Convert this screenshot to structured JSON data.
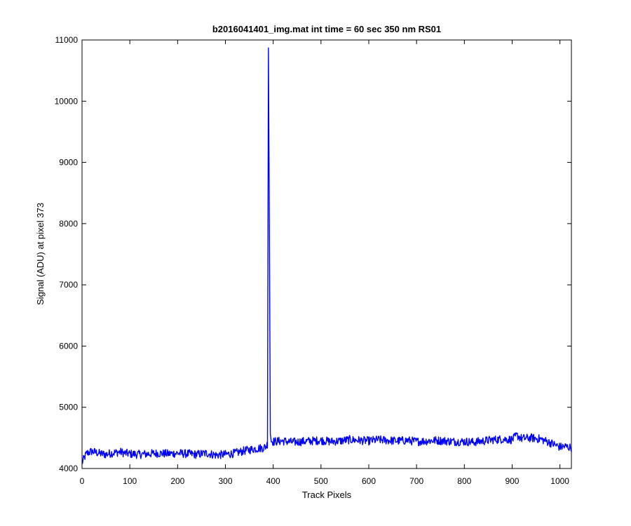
{
  "chart_data": {
    "type": "line",
    "title": "b2016041401_img.mat int time = 60 sec  350 nm RS01",
    "xlabel": "Track Pixels",
    "ylabel": "Signal (ADU) at pixel 373",
    "xlim": [
      0,
      1024
    ],
    "ylim": [
      4000,
      11000
    ],
    "xticks": [
      0,
      100,
      200,
      300,
      400,
      500,
      600,
      700,
      800,
      900,
      1000
    ],
    "yticks": [
      4000,
      5000,
      6000,
      7000,
      8000,
      9000,
      10000,
      11000
    ],
    "grid": false,
    "line_color": "#0000ff",
    "series": [
      {
        "x": [
          0,
          5,
          10,
          20,
          30,
          40,
          50,
          60,
          70,
          80,
          90,
          100,
          120,
          140,
          160,
          180,
          200,
          220,
          240,
          260,
          280,
          300,
          320,
          340,
          360,
          380,
          385,
          388,
          390,
          392,
          394,
          396,
          400,
          420,
          440,
          460,
          480,
          500,
          520,
          540,
          560,
          580,
          600,
          620,
          640,
          660,
          680,
          700,
          720,
          740,
          760,
          780,
          800,
          820,
          840,
          860,
          880,
          900,
          910,
          920,
          940,
          960,
          980,
          1000,
          1010,
          1024
        ],
        "y": [
          4090,
          4180,
          4250,
          4280,
          4260,
          4240,
          4230,
          4250,
          4260,
          4270,
          4250,
          4240,
          4230,
          4240,
          4250,
          4240,
          4250,
          4240,
          4230,
          4250,
          4220,
          4230,
          4250,
          4290,
          4320,
          4340,
          4360,
          4400,
          10870,
          8000,
          4600,
          4450,
          4440,
          4450,
          4430,
          4440,
          4450,
          4460,
          4440,
          4450,
          4470,
          4460,
          4450,
          4470,
          4460,
          4450,
          4460,
          4440,
          4450,
          4460,
          4450,
          4440,
          4440,
          4430,
          4450,
          4470,
          4480,
          4470,
          4540,
          4490,
          4500,
          4480,
          4420,
          4350,
          4360,
          4340
        ]
      }
    ]
  }
}
